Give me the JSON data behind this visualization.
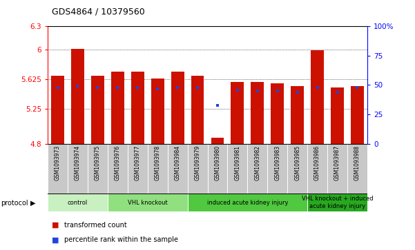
{
  "title": "GDS4864 / 10379560",
  "samples": [
    "GSM1093973",
    "GSM1093974",
    "GSM1093975",
    "GSM1093976",
    "GSM1093977",
    "GSM1093978",
    "GSM1093984",
    "GSM1093979",
    "GSM1093980",
    "GSM1093981",
    "GSM1093982",
    "GSM1093983",
    "GSM1093985",
    "GSM1093986",
    "GSM1093987",
    "GSM1093988"
  ],
  "red_values": [
    5.67,
    6.01,
    5.665,
    5.72,
    5.725,
    5.635,
    5.725,
    5.67,
    4.88,
    5.59,
    5.585,
    5.57,
    5.535,
    5.99,
    5.52,
    5.54
  ],
  "blue_values": [
    5.52,
    5.535,
    5.515,
    5.52,
    5.515,
    5.505,
    5.52,
    5.515,
    5.29,
    5.48,
    5.475,
    5.475,
    5.46,
    5.52,
    5.46,
    5.515
  ],
  "ymin": 4.8,
  "ymax": 6.3,
  "yticks": [
    4.8,
    5.25,
    5.625,
    6.0,
    6.3
  ],
  "ytick_labels": [
    "4.8",
    "5.25",
    "5.625",
    "6",
    "6.3"
  ],
  "right_yticks_pct": [
    0,
    25,
    50,
    75,
    100
  ],
  "right_ytick_labels": [
    "0",
    "25",
    "50",
    "75",
    "100%"
  ],
  "protocols": [
    {
      "label": "control",
      "start": 0,
      "end": 3,
      "color": "#c8f0c0"
    },
    {
      "label": "VHL knockout",
      "start": 3,
      "end": 7,
      "color": "#90e080"
    },
    {
      "label": "induced acute kidney injury",
      "start": 7,
      "end": 13,
      "color": "#50c840"
    },
    {
      "label": "VHL knockout + induced\nacute kidney injury",
      "start": 13,
      "end": 16,
      "color": "#28a820"
    }
  ],
  "bar_color": "#cc1100",
  "blue_color": "#2244dd",
  "tick_label_bg": "#c8c8c8"
}
